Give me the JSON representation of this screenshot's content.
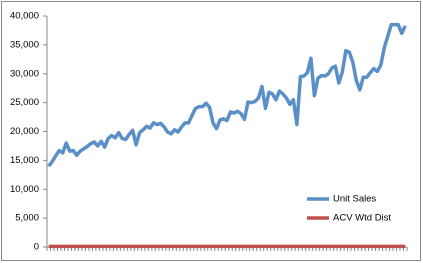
{
  "chart_data": {
    "type": "line",
    "categories": [
      null,
      null,
      null,
      null,
      null,
      null,
      null,
      null,
      null,
      null,
      null,
      null,
      null,
      null,
      null,
      null,
      null,
      null,
      null,
      null,
      null,
      null,
      null,
      null,
      null,
      null,
      null,
      null,
      null,
      null,
      null,
      null,
      null,
      null,
      null,
      null,
      null,
      null,
      null,
      null,
      null,
      null,
      null,
      null,
      null,
      null,
      null,
      null,
      null,
      null,
      null,
      null,
      null,
      null,
      null,
      null,
      null,
      null,
      null,
      null,
      null,
      null,
      null,
      null,
      null,
      null,
      null,
      null,
      null,
      null,
      null,
      null,
      null,
      null,
      null,
      null,
      null,
      null,
      null,
      null,
      null,
      null,
      null,
      null,
      null,
      null,
      null,
      null,
      null,
      null,
      null,
      null,
      null,
      null,
      null,
      null,
      null,
      null,
      null,
      null,
      null,
      null,
      null
    ],
    "series": [
      {
        "name": "Unit Sales",
        "color": "#5b8fc8",
        "values": [
          14000,
          14800,
          15800,
          16700,
          16300,
          18000,
          16600,
          16700,
          15900,
          16600,
          17000,
          17400,
          17900,
          18200,
          17500,
          18300,
          17300,
          18800,
          19300,
          18900,
          19800,
          18800,
          18600,
          19500,
          20200,
          17700,
          19800,
          20300,
          20900,
          20600,
          21500,
          21200,
          21400,
          20800,
          19900,
          19600,
          20300,
          19900,
          20800,
          21500,
          21500,
          22800,
          24000,
          24300,
          24300,
          24900,
          24200,
          21500,
          20500,
          22000,
          22200,
          21900,
          23400,
          23200,
          23500,
          23100,
          22100,
          25100,
          25000,
          25200,
          25800,
          27800,
          24000,
          26800,
          26500,
          25500,
          27000,
          26500,
          25800,
          24700,
          25500,
          21200,
          29500,
          29600,
          30200,
          32700,
          26200,
          29200,
          29700,
          29600,
          30000,
          31000,
          31300,
          28400,
          30300,
          34000,
          33700,
          32000,
          28800,
          27200,
          29400,
          29400,
          30200,
          30900,
          30400,
          31500,
          34500,
          36500,
          38500,
          38500,
          38500,
          37000,
          38300
        ]
      },
      {
        "name": "ACV Wtd Dist",
        "color": "#c0504d",
        "values": [
          100,
          100,
          100,
          100,
          100,
          100,
          100,
          100,
          100,
          100,
          100,
          100,
          100,
          100,
          100,
          100,
          100,
          100,
          100,
          100,
          100,
          100,
          100,
          100,
          100,
          100,
          100,
          100,
          100,
          100,
          100,
          100,
          100,
          100,
          100,
          100,
          100,
          100,
          100,
          100,
          100,
          100,
          100,
          100,
          100,
          100,
          100,
          100,
          100,
          100,
          100,
          100,
          100,
          100,
          100,
          100,
          100,
          100,
          100,
          100,
          100,
          100,
          100,
          100,
          100,
          100,
          100,
          100,
          100,
          100,
          100,
          100,
          100,
          100,
          100,
          100,
          100,
          100,
          100,
          100,
          100,
          100,
          100,
          100,
          100,
          100,
          100,
          100,
          100,
          100,
          100,
          100,
          100,
          100,
          100,
          100,
          100,
          100,
          100,
          100,
          100,
          100,
          100
        ]
      }
    ],
    "ylim": [
      0,
      40000
    ],
    "yticks": [
      0,
      {
        "value": 5000,
        "label": "5,000"
      },
      {
        "value": 10000,
        "label": "10,000"
      },
      {
        "value": 15000,
        "label": "15,000"
      },
      {
        "value": 20000,
        "label": "20,000"
      },
      {
        "value": 25000,
        "label": "25,000"
      },
      {
        "value": 30000,
        "label": "30,000"
      },
      {
        "value": 35000,
        "label": "35,000"
      },
      {
        "value": 40000,
        "label": "40,000"
      }
    ],
    "grid": false,
    "legend": "right"
  }
}
